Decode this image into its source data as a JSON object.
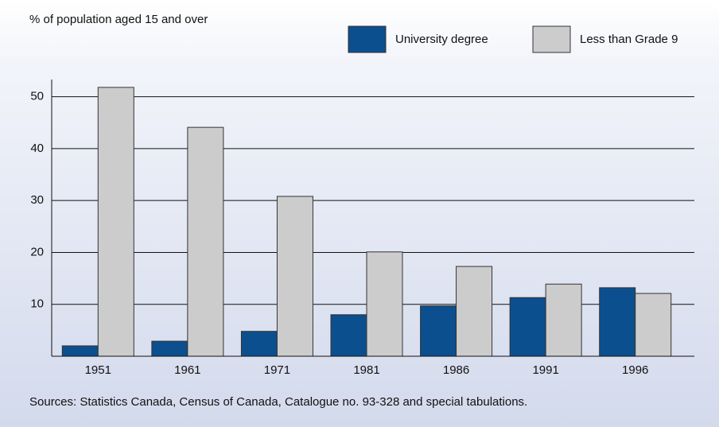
{
  "chart_data": {
    "type": "bar",
    "y_label": "% of population aged 15 and over",
    "source": "Sources: Statistics Canada, Census of Canada, Catalogue no. 93-328 and special tabulations.",
    "categories": [
      "1951",
      "1961",
      "1971",
      "1981",
      "1986",
      "1991",
      "1996"
    ],
    "series": [
      {
        "name": "University degree",
        "color": "#0c4f8e",
        "values": [
          2.0,
          2.9,
          4.8,
          8.0,
          9.7,
          11.3,
          13.2
        ]
      },
      {
        "name": "Less than Grade 9",
        "color": "#cccccc",
        "values": [
          51.8,
          44.1,
          30.8,
          20.1,
          17.3,
          13.9,
          12.1
        ]
      }
    ],
    "ylim": [
      0,
      55
    ],
    "yticks": [
      10,
      20,
      30,
      40,
      50
    ],
    "grid": true,
    "legend": "top-right"
  }
}
